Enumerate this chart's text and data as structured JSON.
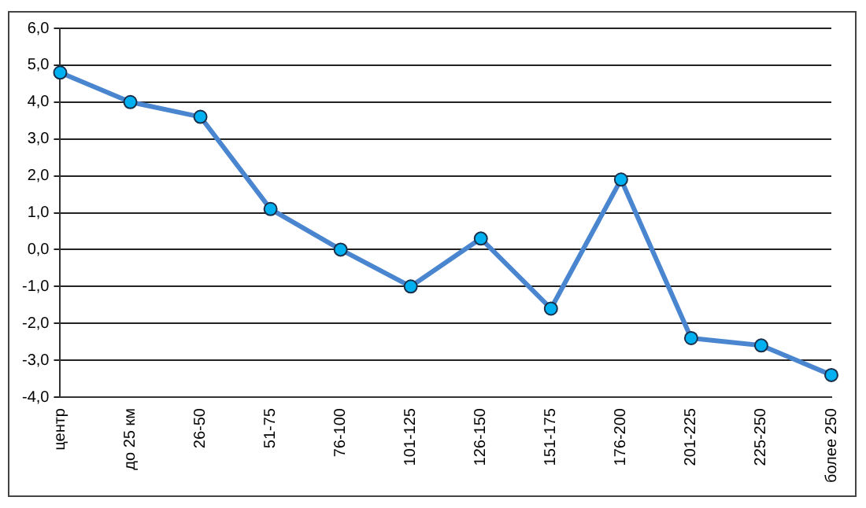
{
  "chart_data": {
    "type": "line",
    "categories": [
      "центр",
      "до 25 км",
      "26-50",
      "51-75",
      "76-100",
      "101-125",
      "126-150",
      "151-175",
      "176-200",
      "201-225",
      "225-250",
      "более 250"
    ],
    "series": [
      {
        "color": "#4a86d0",
        "values": [
          4.8,
          4.0,
          3.6,
          1.1,
          0.0,
          -1.0,
          0.3,
          -1.6,
          1.9,
          -2.4,
          -2.6,
          -3.4
        ]
      }
    ],
    "ylim": [
      -4,
      6
    ],
    "yticks": [
      {
        "value": -4,
        "label": "-4,0"
      },
      {
        "value": -3,
        "label": "-3,0"
      },
      {
        "value": -2,
        "label": "-2,0"
      },
      {
        "value": -1,
        "label": "-1,0"
      },
      {
        "value": 0,
        "label": "0,0"
      },
      {
        "value": 1,
        "label": "1,0"
      },
      {
        "value": 2,
        "label": "2,0"
      },
      {
        "value": 3,
        "label": "3,0"
      },
      {
        "value": 4,
        "label": "4,0"
      },
      {
        "value": 5,
        "label": "5,0"
      },
      {
        "value": 6,
        "label": "6,0"
      }
    ],
    "grid": "y",
    "legend": false,
    "marker": "circle",
    "line_style": "solid"
  }
}
